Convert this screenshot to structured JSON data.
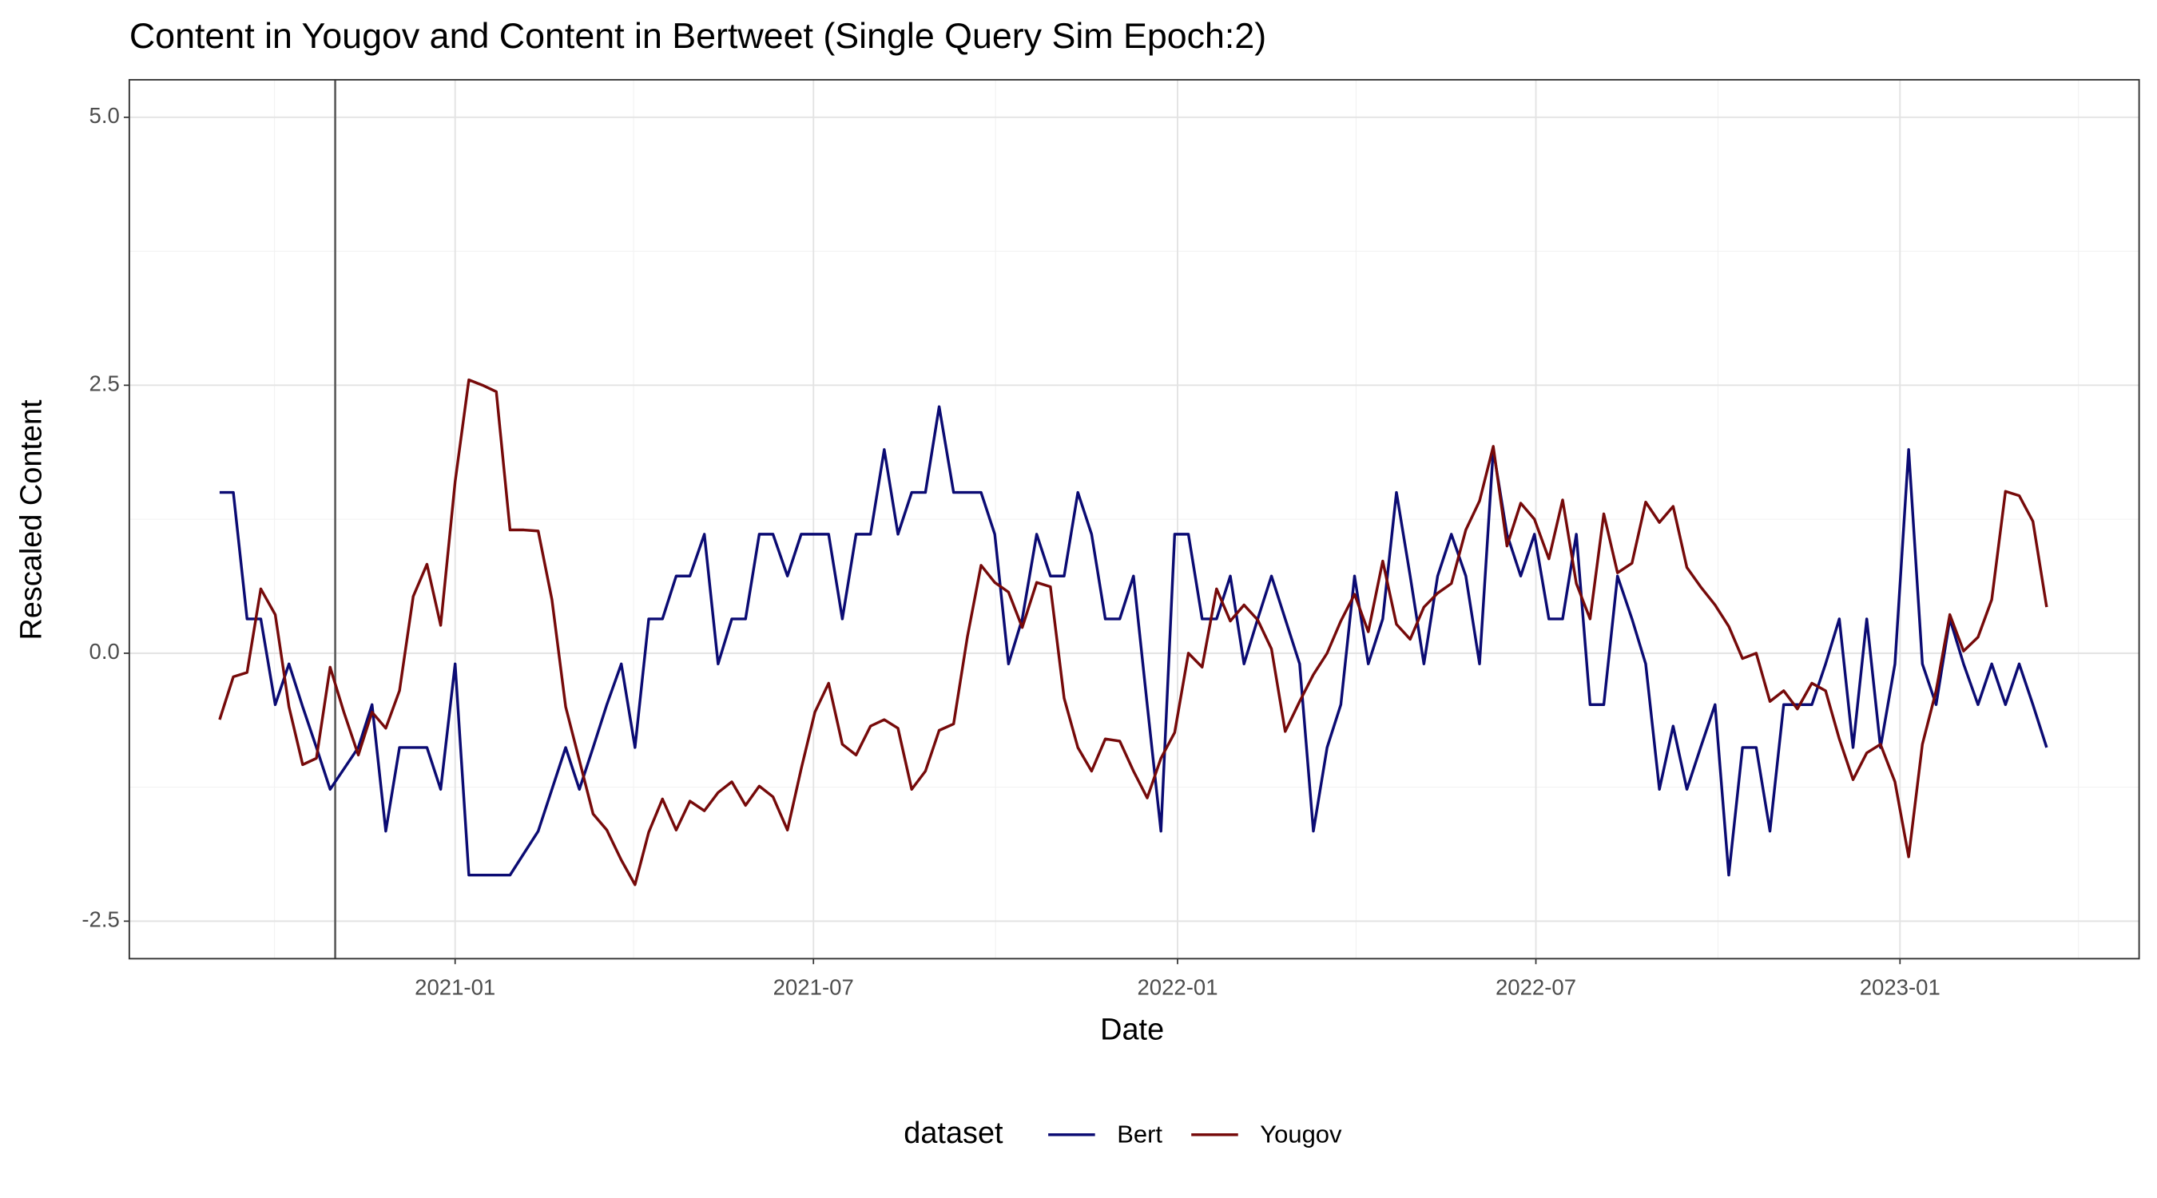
{
  "chart_data": {
    "type": "line",
    "title": "Content in Yougov and Content in Bertweet (Single Query Sim Epoch:2)",
    "xlabel": "Date",
    "ylabel": "Rescaled  Content",
    "legend_title": "dataset",
    "legend": "bottom",
    "grid": true,
    "xlim": [
      2020.549,
      2023.331
    ],
    "ylim": [
      -2.85,
      5.35
    ],
    "xticks": [
      {
        "value": 2021.0,
        "label": "2021-01"
      },
      {
        "value": 2021.496,
        "label": "2021-07"
      },
      {
        "value": 2022.0,
        "label": "2022-01"
      },
      {
        "value": 2022.496,
        "label": "2022-07"
      },
      {
        "value": 2023.0,
        "label": "2023-01"
      }
    ],
    "xminorticks": [
      2020.75,
      2021.247,
      2021.748,
      2022.247,
      2022.748,
      2023.247
    ],
    "yticks": [
      {
        "value": -2.5,
        "label": "-2.5"
      },
      {
        "value": 0,
        "label": "0.0"
      },
      {
        "value": 2.5,
        "label": "2.5"
      },
      {
        "value": 5,
        "label": "5.0"
      }
    ],
    "yminorticks": [
      -1.25,
      1.25,
      3.75
    ],
    "vline": 2020.834,
    "vline_color": "#5a5a5a",
    "x": [
      2020.674,
      2020.693,
      2020.712,
      2020.731,
      2020.751,
      2020.77,
      2020.789,
      2020.808,
      2020.827,
      2020.846,
      2020.866,
      2020.885,
      2020.904,
      2020.923,
      2020.942,
      2020.961,
      2020.98,
      2021.0,
      2021.019,
      2021.038,
      2021.057,
      2021.076,
      2021.095,
      2021.115,
      2021.134,
      2021.153,
      2021.172,
      2021.191,
      2021.21,
      2021.23,
      2021.249,
      2021.268,
      2021.287,
      2021.306,
      2021.325,
      2021.345,
      2021.364,
      2021.383,
      2021.402,
      2021.421,
      2021.44,
      2021.46,
      2021.479,
      2021.498,
      2021.517,
      2021.536,
      2021.555,
      2021.575,
      2021.594,
      2021.613,
      2021.632,
      2021.651,
      2021.67,
      2021.69,
      2021.709,
      2021.728,
      2021.747,
      2021.766,
      2021.785,
      2021.805,
      2021.824,
      2021.843,
      2021.862,
      2021.881,
      2021.9,
      2021.92,
      2021.939,
      2021.958,
      2021.977,
      2021.996,
      2022.015,
      2022.034,
      2022.054,
      2022.073,
      2022.092,
      2022.111,
      2022.13,
      2022.149,
      2022.169,
      2022.188,
      2022.207,
      2022.226,
      2022.245,
      2022.264,
      2022.284,
      2022.303,
      2022.322,
      2022.341,
      2022.36,
      2022.379,
      2022.399,
      2022.418,
      2022.437,
      2022.456,
      2022.475,
      2022.494,
      2022.514,
      2022.533,
      2022.552,
      2022.571,
      2022.59,
      2022.609,
      2022.629,
      2022.648,
      2022.667,
      2022.686,
      2022.705,
      2022.724,
      2022.744,
      2022.763,
      2022.782,
      2022.801,
      2022.82,
      2022.839,
      2022.858,
      2022.878,
      2022.897,
      2022.916,
      2022.935,
      2022.954,
      2022.973,
      2022.993,
      2023.012,
      2023.031,
      2023.05,
      2023.069,
      2023.088,
      2023.108,
      2023.127,
      2023.146,
      2023.165,
      2023.184,
      2023.203
    ],
    "series": [
      {
        "name": "Bert",
        "color": "#0b0b73",
        "values": [
          1.5,
          1.5,
          0.32,
          0.32,
          -0.48,
          -0.1,
          -0.5,
          -0.88,
          -1.27,
          -1.08,
          -0.88,
          -0.48,
          -1.66,
          -0.88,
          -0.88,
          -0.88,
          -1.27,
          -0.1,
          -2.07,
          -2.07,
          -2.07,
          -2.07,
          -1.87,
          -1.66,
          -1.27,
          -0.88,
          -1.27,
          -0.88,
          -0.48,
          -0.1,
          -0.88,
          0.32,
          0.32,
          0.72,
          0.72,
          1.11,
          -0.1,
          0.32,
          0.32,
          1.11,
          1.11,
          0.72,
          1.11,
          1.11,
          1.11,
          0.32,
          1.11,
          1.11,
          1.9,
          1.11,
          1.5,
          1.5,
          2.3,
          1.5,
          1.5,
          1.5,
          1.11,
          -0.1,
          0.32,
          1.11,
          0.72,
          0.72,
          1.5,
          1.11,
          0.32,
          0.32,
          0.72,
          -0.48,
          -1.66,
          1.11,
          1.11,
          0.32,
          0.32,
          0.72,
          -0.1,
          0.32,
          0.72,
          0.32,
          -0.1,
          -1.66,
          -0.88,
          -0.48,
          0.72,
          -0.1,
          0.32,
          1.5,
          0.72,
          -0.1,
          0.72,
          1.11,
          0.72,
          -0.1,
          1.9,
          1.11,
          0.72,
          1.11,
          0.32,
          0.32,
          1.11,
          -0.48,
          -0.48,
          0.72,
          0.32,
          -0.1,
          -1.27,
          -0.68,
          -1.27,
          -0.88,
          -0.48,
          -2.07,
          -0.88,
          -0.88,
          -1.66,
          -0.48,
          -0.48,
          -0.48,
          -0.1,
          0.32,
          -0.88,
          0.32,
          -0.88,
          -0.1,
          1.9,
          -0.1,
          -0.48,
          0.32,
          -0.1,
          -0.48,
          -0.1,
          -0.48,
          -0.1,
          -0.48,
          -0.88
        ]
      },
      {
        "name": "Yougov",
        "color": "#760a0a",
        "values": [
          -0.62,
          -0.22,
          -0.18,
          0.6,
          0.36,
          -0.5,
          -1.04,
          -0.98,
          -0.13,
          -0.55,
          -0.95,
          -0.55,
          -0.7,
          -0.35,
          0.53,
          0.83,
          0.26,
          1.6,
          2.55,
          2.5,
          2.44,
          1.15,
          1.15,
          1.14,
          0.5,
          -0.5,
          -1.0,
          -1.5,
          -1.65,
          -1.93,
          -2.16,
          -1.67,
          -1.36,
          -1.65,
          -1.38,
          -1.47,
          -1.3,
          -1.2,
          -1.42,
          -1.24,
          -1.34,
          -1.65,
          -1.08,
          -0.55,
          -0.28,
          -0.85,
          -0.95,
          -0.68,
          -0.62,
          -0.7,
          -1.27,
          -1.1,
          -0.72,
          -0.66,
          0.15,
          0.82,
          0.66,
          0.57,
          0.24,
          0.66,
          0.62,
          -0.42,
          -0.88,
          -1.1,
          -0.8,
          -0.82,
          -1.1,
          -1.35,
          -0.98,
          -0.74,
          0.0,
          -0.13,
          0.6,
          0.3,
          0.45,
          0.31,
          0.04,
          -0.73,
          -0.45,
          -0.2,
          0.0,
          0.3,
          0.55,
          0.2,
          0.86,
          0.27,
          0.13,
          0.43,
          0.56,
          0.65,
          1.15,
          1.42,
          1.93,
          1.0,
          1.4,
          1.25,
          0.88,
          1.43,
          0.65,
          0.32,
          1.3,
          0.75,
          0.84,
          1.41,
          1.22,
          1.37,
          0.8,
          0.62,
          0.45,
          0.25,
          -0.05,
          0.0,
          -0.45,
          -0.35,
          -0.52,
          -0.28,
          -0.35,
          -0.8,
          -1.18,
          -0.93,
          -0.85,
          -1.2,
          -1.9,
          -0.85,
          -0.35,
          0.36,
          0.02,
          0.15,
          0.5,
          1.51,
          1.47,
          1.23,
          0.43
        ]
      }
    ]
  }
}
